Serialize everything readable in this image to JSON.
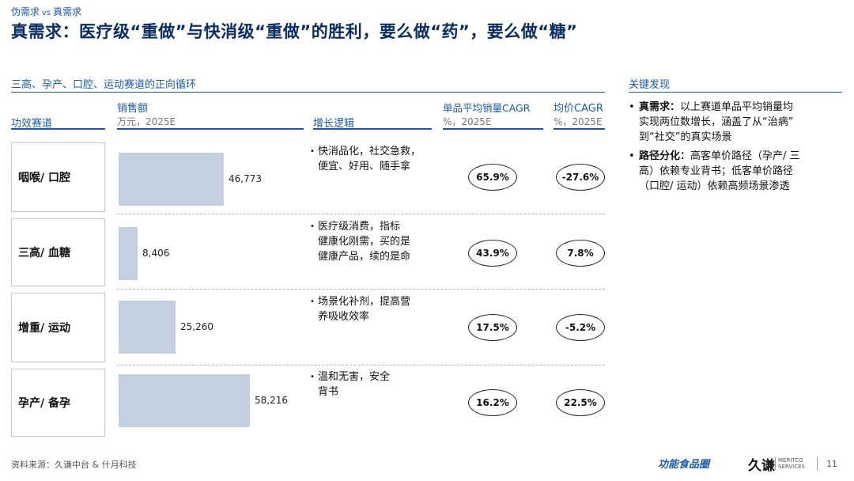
{
  "header": {
    "kicker_left": "伪需求",
    "kicker_vs": "vs",
    "kicker_right": "真需求",
    "title": "真需求：医疗级“重做”与快消级“重做”的胜利，要么做“药”，要么做“糖”"
  },
  "section_title": "三高、孕产、口腔、运动赛道的正向循环",
  "columns": {
    "track": "功效赛道",
    "sales": "销售额",
    "sales_unit": "万元，2025E",
    "logic": "增长逻辑",
    "volume_cagr": "单品平均销量CAGR",
    "volume_cagr_unit": "%，2025E",
    "price_cagr": "均价CAGR",
    "price_cagr_unit": "%，2025E"
  },
  "rows": [
    {
      "track": "咽喉/ 口腔",
      "sales_label": "46,773",
      "logic_lines": [
        "快消品化，社交急救，",
        "便宜、好用、随手拿"
      ],
      "volume_cagr": "65.9%",
      "price_cagr": "-27.6%"
    },
    {
      "track": "三高/ 血糖",
      "sales_label": "8,406",
      "logic_lines": [
        "医疗级消费，指标",
        "健康化刚需，买的是",
        "健康产品，续的是命"
      ],
      "volume_cagr": "43.9%",
      "price_cagr": "7.8%"
    },
    {
      "track": "增重/ 运动",
      "sales_label": "25,260",
      "logic_lines": [
        "场景化补剂，提高营",
        "养吸收效率"
      ],
      "volume_cagr": "17.5%",
      "price_cagr": "-5.2%"
    },
    {
      "track": "孕产/ 备孕",
      "sales_label": "58,216",
      "logic_lines": [
        "温和无害，安全",
        "背书"
      ],
      "volume_cagr": "16.2%",
      "price_cagr": "22.5%"
    }
  ],
  "chart_data": {
    "type": "bar",
    "orientation": "horizontal",
    "title": "销售额",
    "unit": "万元，2025E",
    "categories": [
      "咽喉/ 口腔",
      "三高/ 血糖",
      "增重/ 运动",
      "孕产/ 备孕"
    ],
    "values": [
      46773,
      8406,
      25260,
      58216
    ],
    "bar_color": "#c4cfe0"
  },
  "findings": {
    "title": "关键发现",
    "items": [
      {
        "label": "真需求：",
        "lines": [
          "以上赛道单品平均销量均",
          "实现两位数增长，涵盖了从“治病”",
          "到“社交”的真实场景"
        ]
      },
      {
        "label": "路径分化：",
        "lines": [
          "高客单价路径（孕产/ 三",
          "高）依赖专业背书；低客单价路径",
          "（口腔/ 运动）依赖高频场景渗透"
        ]
      }
    ]
  },
  "footer": {
    "source": "资料来源：久谦中台 & 什月科技",
    "logo_left": "功能食品圈",
    "logo_brand": "久谦",
    "logo_brand_line1": "MERITCO",
    "logo_brand_line2": "SERVICES",
    "page": "11"
  },
  "colors": {
    "accent": "#1c5aa6",
    "title": "#0a2e63",
    "bar": "#c4cfe0"
  }
}
